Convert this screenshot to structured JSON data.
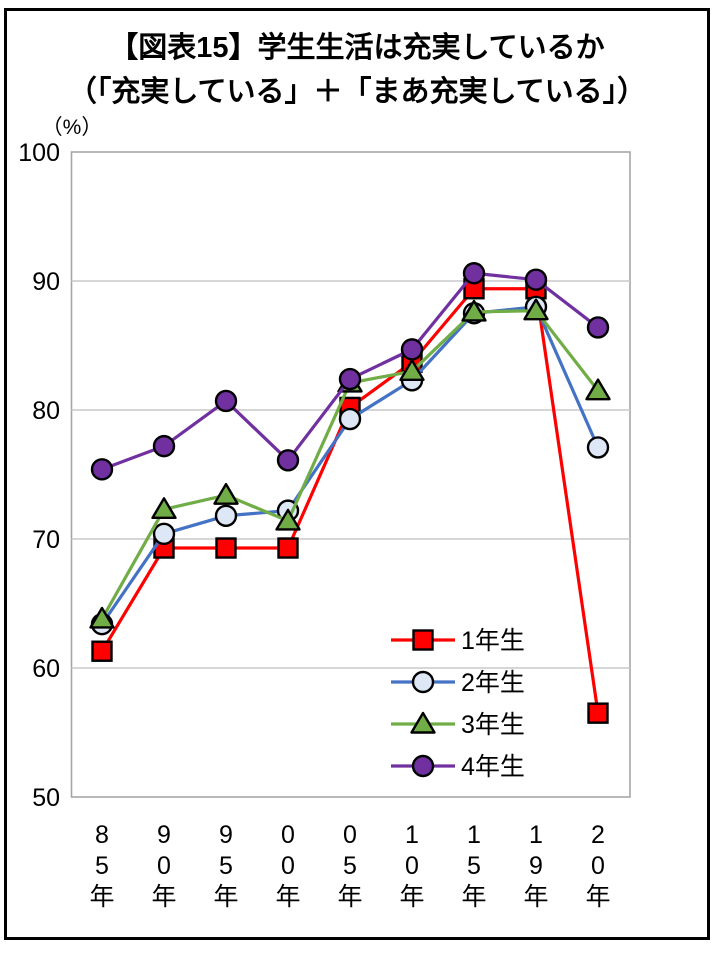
{
  "title": {
    "line1": "【図表15】学生生活は充実しているか",
    "line2": "（「充実している」＋「まあ充実している」）"
  },
  "chart_data": {
    "type": "line",
    "title": "【図表15】学生生活は充実しているか（「充実している」＋「まあ充実している」）",
    "unit_label": "（%）",
    "categories": [
      "85年",
      "90年",
      "95年",
      "00年",
      "05年",
      "10年",
      "15年",
      "19年",
      "20年"
    ],
    "xlabel": "",
    "ylabel": "%",
    "ylim": [
      50,
      100
    ],
    "yticks": [
      100,
      90,
      80,
      70,
      60,
      50
    ],
    "grid": "horizontal",
    "legend_position": "inside-lower-right",
    "colors": {
      "grade1": "#FF0000",
      "grade2": "#4472C4",
      "grade3": "#70AD47",
      "grade4": "#7030A0",
      "gridline": "#C9C9C9",
      "plot_frame": "#A6A6A6",
      "outer_border": "#000000",
      "circle_open_fill": "#DEE7F5"
    },
    "series": [
      {
        "name": "1年生",
        "marker": "square",
        "color": "#FF0000",
        "marker_fill": "#FF0000",
        "values": [
          61.3,
          69.3,
          69.3,
          69.3,
          80.2,
          83.7,
          89.4,
          89.4,
          56.5
        ]
      },
      {
        "name": "2年生",
        "marker": "circle",
        "color": "#4472C4",
        "marker_fill": "#DEE7F5",
        "values": [
          63.4,
          70.4,
          71.8,
          72.2,
          79.3,
          82.3,
          87.5,
          88.0,
          77.1
        ]
      },
      {
        "name": "3年生",
        "marker": "triangle",
        "color": "#70AD47",
        "marker_fill": "#70AD47",
        "values": [
          63.8,
          72.3,
          73.4,
          71.4,
          82.1,
          83.0,
          87.6,
          87.7,
          81.5
        ]
      },
      {
        "name": "4年生",
        "marker": "circle",
        "color": "#7030A0",
        "marker_fill": "#7030A0",
        "values": [
          75.4,
          77.2,
          80.7,
          76.1,
          82.4,
          84.7,
          90.6,
          90.1,
          86.4
        ]
      }
    ]
  }
}
